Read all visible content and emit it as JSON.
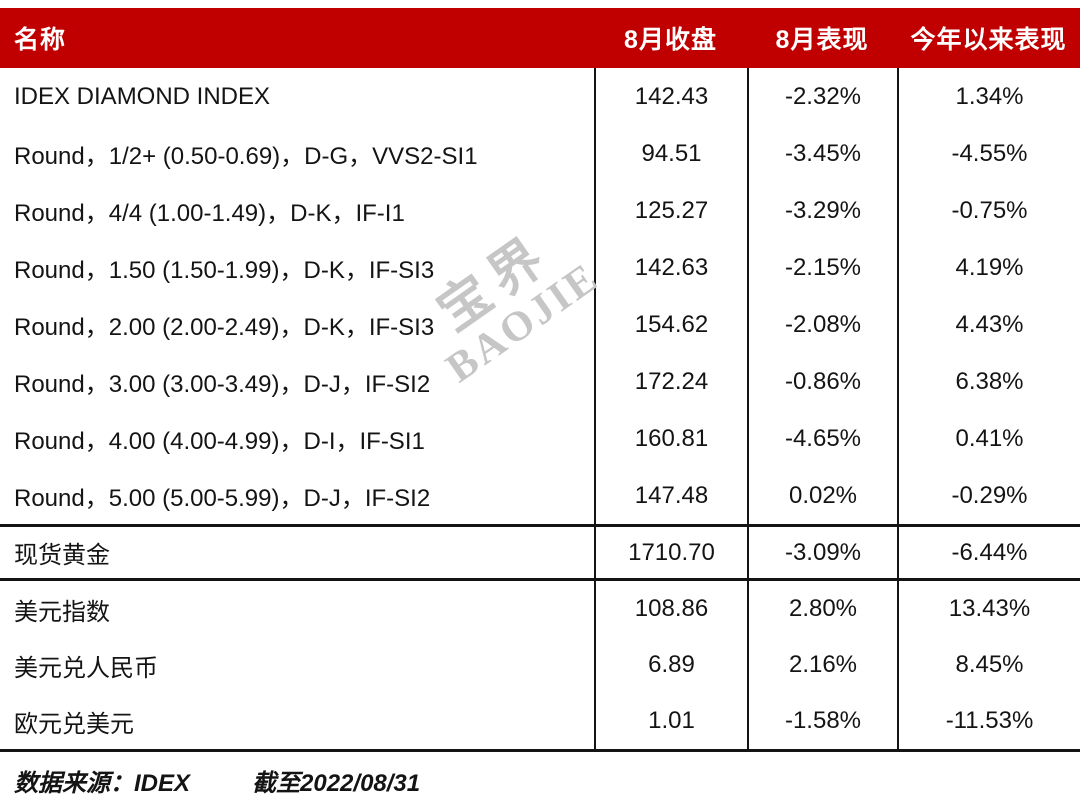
{
  "colors": {
    "header_bg": "#C00000",
    "header_text": "#FFFFFF",
    "body_text": "#141414",
    "grid_line": "#141414",
    "watermark": "#C6C6C6"
  },
  "chart_data": {
    "type": "table",
    "columns": [
      "名称",
      "8月收盘",
      "8月表现",
      "今年以来表现"
    ],
    "sections": [
      {
        "id": "diamond",
        "rows": [
          [
            "IDEX DIAMOND INDEX",
            "142.43",
            "-2.32%",
            "1.34%"
          ],
          [
            "Round，1/2+ (0.50-0.69)，D-G，VVS2-SI1",
            "94.51",
            "-3.45%",
            "-4.55%"
          ],
          [
            "Round，4/4 (1.00-1.49)，D-K，IF-I1",
            "125.27",
            "-3.29%",
            "-0.75%"
          ],
          [
            "Round，1.50 (1.50-1.99)，D-K，IF-SI3",
            "142.63",
            "-2.15%",
            "4.19%"
          ],
          [
            "Round，2.00 (2.00-2.49)，D-K，IF-SI3",
            "154.62",
            "-2.08%",
            "4.43%"
          ],
          [
            "Round，3.00 (3.00-3.49)，D-J，IF-SI2",
            "172.24",
            "-0.86%",
            "6.38%"
          ],
          [
            "Round，4.00 (4.00-4.99)，D-I，IF-SI1",
            "160.81",
            "-4.65%",
            "0.41%"
          ],
          [
            "Round，5.00 (5.00-5.99)，D-J，IF-SI2",
            "147.48",
            "0.02%",
            "-0.29%"
          ]
        ]
      },
      {
        "id": "gold",
        "rows": [
          [
            "现货黄金",
            "1710.70",
            "-3.09%",
            "-6.44%"
          ]
        ]
      },
      {
        "id": "fx",
        "rows": [
          [
            "美元指数",
            "108.86",
            "2.80%",
            "13.43%"
          ],
          [
            "美元兑人民币",
            "6.89",
            "2.16%",
            "8.45%"
          ],
          [
            "欧元兑美元",
            "1.01",
            "-1.58%",
            "-11.53%"
          ]
        ]
      }
    ]
  },
  "watermark": {
    "line1": "宝界",
    "line2": "BAOJIE"
  },
  "footer": {
    "source": "数据来源：IDEX",
    "as_of": "截至2022/08/31"
  }
}
